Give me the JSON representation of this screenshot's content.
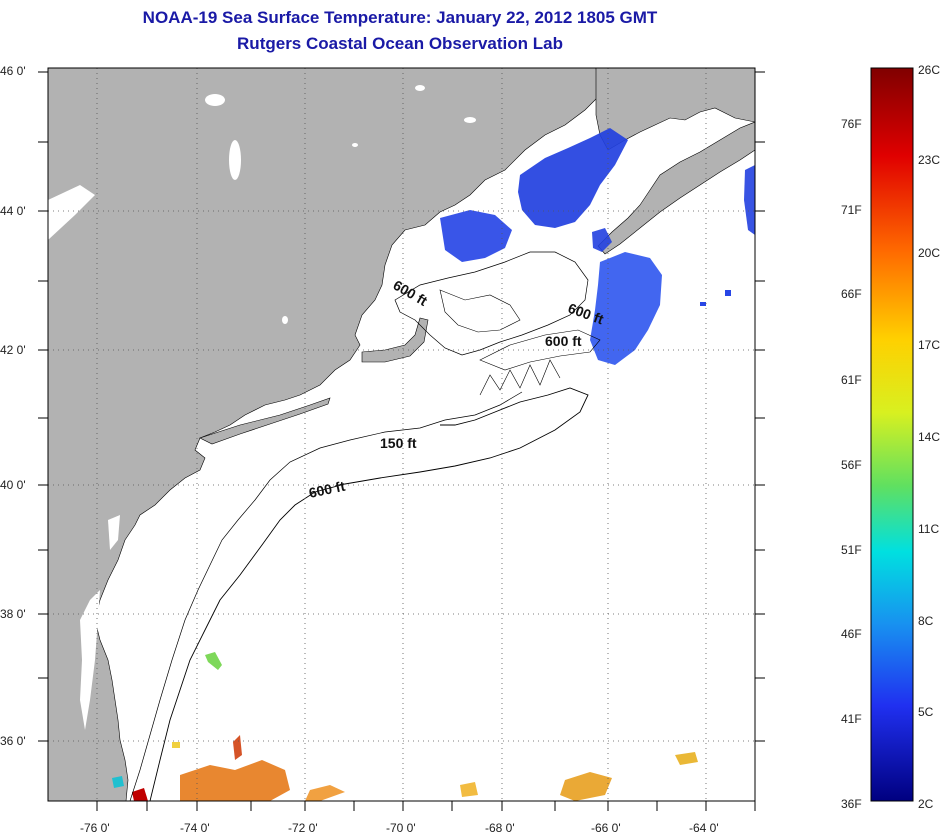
{
  "title_line1": "NOAA-19 Sea Surface Temperature:  January 22, 2012 1805 GMT",
  "title_line2": "Rutgers Coastal Ocean Observation Lab",
  "lat_labels": [
    "46 0'",
    "44 0'",
    "42 0'",
    "40 0'",
    "38 0'",
    "36 0'"
  ],
  "lon_labels": [
    "-76 0'",
    "-74 0'",
    "-72 0'",
    "-70 0'",
    "-68 0'",
    "-66 0'",
    "-64 0'"
  ],
  "contour_labels": [
    "600 ft",
    "600 ft",
    "600 ft",
    "150 ft",
    "600 ft"
  ],
  "colorbar": {
    "celsius_labels": [
      "26C",
      "23C",
      "20C",
      "17C",
      "14C",
      "11C",
      "8C",
      "5C",
      "2C"
    ],
    "fahrenheit_labels": [
      "76F",
      "71F",
      "66F",
      "61F",
      "56F",
      "51F",
      "46F",
      "41F",
      "36F"
    ]
  },
  "colors": {
    "land": "#b2b2b2",
    "ocean": "#ffffff",
    "title": "#1a1aa6",
    "cold_patch": "#2244e0"
  }
}
